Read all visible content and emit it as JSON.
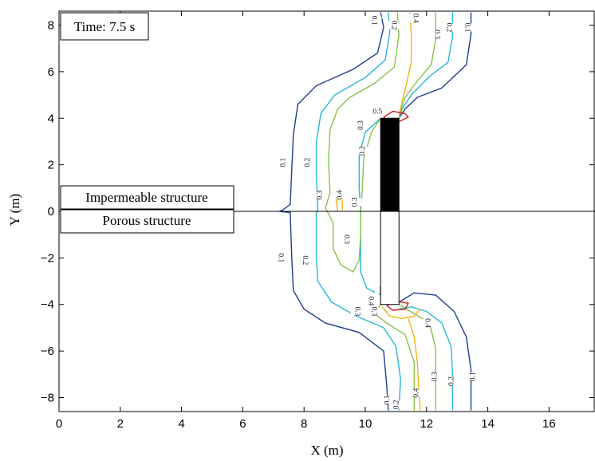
{
  "chart_data": {
    "type": "contour",
    "xlabel": "X (m)",
    "ylabel": "Y (m)",
    "xlim": [
      0,
      17.5
    ],
    "ylim": [
      -8.6,
      8.6
    ],
    "xticks": [
      0,
      2,
      4,
      6,
      8,
      10,
      12,
      14,
      16
    ],
    "yticks": [
      -8,
      -6,
      -4,
      -2,
      0,
      2,
      4,
      6,
      8
    ],
    "annotations": {
      "time": "Time: 7.5 s",
      "upper_structure": "Impermeable structure",
      "lower_structure": "Porous structure"
    },
    "structure": {
      "x": [
        10.5,
        11.1
      ],
      "y_upper": [
        0,
        4
      ],
      "y_lower": [
        -4,
        0
      ]
    },
    "levels": [
      {
        "level": 0.1,
        "label": "0.1",
        "color": "#1f3d8f"
      },
      {
        "level": 0.2,
        "label": "0.2",
        "color": "#29b6d9"
      },
      {
        "level": 0.3,
        "label": "0.3",
        "color": "#8cc04a"
      },
      {
        "level": 0.4,
        "label": "0.4",
        "color": "#f2b316"
      },
      {
        "level": 0.5,
        "label": "0.5",
        "color": "#cc1f1a"
      }
    ],
    "contours": [
      {
        "level": 0.1,
        "points": [
          [
            10.5,
            8.55
          ],
          [
            10.6,
            7.9
          ],
          [
            10.4,
            6.8
          ],
          [
            9.6,
            6.1
          ],
          [
            8.4,
            5.4
          ],
          [
            7.8,
            4.6
          ],
          [
            7.65,
            3.3
          ],
          [
            7.6,
            1.8
          ],
          [
            7.55,
            0.3
          ],
          [
            7.3,
            0.05
          ],
          [
            7.2,
            0
          ],
          [
            7.55,
            -0.05
          ],
          [
            7.6,
            -2
          ],
          [
            7.65,
            -3.4
          ],
          [
            8.0,
            -4.2
          ],
          [
            8.7,
            -4.8
          ],
          [
            9.8,
            -5.2
          ],
          [
            10.6,
            -6.0
          ],
          [
            10.7,
            -7.5
          ],
          [
            10.75,
            -8.55
          ]
        ]
      },
      {
        "level": 0.1,
        "points": [
          [
            13.45,
            8.55
          ],
          [
            13.45,
            7.6
          ],
          [
            13.3,
            6.3
          ],
          [
            12.5,
            5.3
          ],
          [
            11.7,
            4.9
          ],
          [
            11.3,
            4.4
          ],
          [
            11.1,
            4.0
          ]
        ]
      },
      {
        "level": 0.1,
        "points": [
          [
            11.1,
            -3.9
          ],
          [
            11.6,
            -3.5
          ],
          [
            12.3,
            -3.6
          ],
          [
            12.9,
            -4.3
          ],
          [
            13.3,
            -5.4
          ],
          [
            13.45,
            -6.8
          ],
          [
            13.45,
            -8.55
          ]
        ]
      },
      {
        "level": 0.2,
        "points": [
          [
            10.75,
            8.55
          ],
          [
            10.8,
            7.7
          ],
          [
            10.65,
            6.5
          ],
          [
            10.0,
            5.75
          ],
          [
            9.0,
            5.0
          ],
          [
            8.55,
            4.2
          ],
          [
            8.4,
            3.0
          ],
          [
            8.4,
            1.5
          ],
          [
            8.45,
            0.1
          ],
          [
            8.4,
            -0.05
          ],
          [
            8.4,
            -2.0
          ],
          [
            8.45,
            -3.0
          ],
          [
            8.9,
            -3.9
          ],
          [
            9.7,
            -4.5
          ],
          [
            10.6,
            -5.0
          ],
          [
            11.0,
            -5.8
          ],
          [
            11.15,
            -7.2
          ],
          [
            11.1,
            -8.55
          ]
        ]
      },
      {
        "level": 0.2,
        "points": [
          [
            12.85,
            8.55
          ],
          [
            12.85,
            7.5
          ],
          [
            12.7,
            6.4
          ],
          [
            12.1,
            5.8
          ],
          [
            11.5,
            5.0
          ],
          [
            11.2,
            4.4
          ],
          [
            11.1,
            4.0
          ]
        ]
      },
      {
        "level": 0.2,
        "points": [
          [
            11.1,
            -4.2
          ],
          [
            11.5,
            -4.1
          ],
          [
            12.0,
            -4.3
          ],
          [
            12.5,
            -4.8
          ],
          [
            12.8,
            -5.8
          ],
          [
            12.85,
            -7.0
          ],
          [
            12.85,
            -8.55
          ]
        ]
      },
      {
        "level": 0.2,
        "points": [
          [
            10.5,
            4.0
          ],
          [
            10.0,
            3.4
          ],
          [
            9.8,
            2.4
          ],
          [
            9.8,
            1.0
          ],
          [
            9.85,
            0.05
          ],
          [
            9.85,
            -1.5
          ],
          [
            9.85,
            -2.6
          ],
          [
            10.05,
            -3.3
          ],
          [
            10.5,
            -3.6
          ]
        ]
      },
      {
        "level": 0.3,
        "points": [
          [
            11.05,
            8.55
          ],
          [
            11.1,
            7.6
          ],
          [
            10.95,
            6.2
          ],
          [
            10.3,
            5.5
          ],
          [
            9.5,
            4.9
          ],
          [
            9.1,
            4.4
          ],
          [
            8.85,
            3.5
          ],
          [
            8.8,
            2.2
          ],
          [
            8.85,
            0.8
          ],
          [
            8.7,
            0.15
          ],
          [
            8.95,
            -0.5
          ],
          [
            8.95,
            -1.6
          ],
          [
            9.2,
            -2.3
          ],
          [
            9.6,
            -2.6
          ],
          [
            9.8,
            -2.1
          ],
          [
            9.85,
            -1.0
          ],
          [
            9.85,
            0.05
          ],
          [
            9.9,
            0.9
          ],
          [
            9.95,
            2.3
          ],
          [
            10.2,
            3.4
          ],
          [
            10.5,
            4.0
          ]
        ]
      },
      {
        "level": 0.3,
        "points": [
          [
            12.3,
            8.55
          ],
          [
            12.3,
            7.4
          ],
          [
            12.15,
            6.3
          ],
          [
            11.7,
            5.6
          ],
          [
            11.3,
            4.9
          ],
          [
            11.15,
            4.3
          ],
          [
            11.1,
            4.0
          ]
        ]
      },
      {
        "level": 0.3,
        "points": [
          [
            10.5,
            -4.0
          ],
          [
            10.3,
            -4.4
          ],
          [
            10.7,
            -4.8
          ],
          [
            11.3,
            -5.3
          ],
          [
            11.6,
            -6.5
          ],
          [
            11.6,
            -8.55
          ]
        ]
      },
      {
        "level": 0.3,
        "points": [
          [
            11.1,
            -4.0
          ],
          [
            11.6,
            -4.4
          ],
          [
            12.1,
            -4.8
          ],
          [
            12.3,
            -5.9
          ],
          [
            12.3,
            -7.2
          ],
          [
            12.3,
            -8.55
          ]
        ]
      },
      {
        "level": 0.4,
        "points": [
          [
            11.45,
            8.55
          ],
          [
            11.5,
            7.7
          ],
          [
            11.5,
            6.4
          ],
          [
            11.35,
            5.5
          ],
          [
            11.2,
            4.7
          ],
          [
            11.1,
            4.1
          ]
        ]
      },
      {
        "level": 0.4,
        "points": [
          [
            9.1,
            0.0
          ],
          [
            9.05,
            0.5
          ],
          [
            9.15,
            0.9
          ],
          [
            9.25,
            0.6
          ],
          [
            9.25,
            0.05
          ]
        ]
      },
      {
        "level": 0.4,
        "points": [
          [
            10.55,
            -4.1
          ],
          [
            10.8,
            -4.5
          ],
          [
            11.2,
            -4.6
          ],
          [
            11.6,
            -4.5
          ],
          [
            11.8,
            -4.2
          ]
        ]
      },
      {
        "level": 0.4,
        "points": [
          [
            11.4,
            -4.6
          ],
          [
            11.6,
            -5.4
          ],
          [
            11.7,
            -6.5
          ],
          [
            11.75,
            -7.8
          ],
          [
            11.8,
            -8.55
          ]
        ]
      },
      {
        "level": 0.5,
        "points": [
          [
            10.6,
            4.05
          ],
          [
            10.9,
            4.3
          ],
          [
            11.3,
            4.2
          ],
          [
            11.4,
            4.05
          ],
          [
            11.1,
            3.85
          ],
          [
            10.75,
            3.9
          ],
          [
            10.6,
            4.05
          ]
        ]
      },
      {
        "level": 0.5,
        "points": [
          [
            10.7,
            -4.05
          ],
          [
            11.0,
            -3.85
          ],
          [
            11.4,
            -3.95
          ],
          [
            11.3,
            -4.2
          ],
          [
            10.9,
            -4.25
          ],
          [
            10.7,
            -4.05
          ]
        ]
      }
    ],
    "contour_labels": [
      {
        "text": "0.1",
        "x": 7.3,
        "y": 2.1,
        "rot": -90,
        "level": 0.1
      },
      {
        "text": "0.2",
        "x": 8.1,
        "y": 2.1,
        "rot": -90,
        "level": 0.2
      },
      {
        "text": "0.3",
        "x": 8.5,
        "y": 0.7,
        "rot": -90,
        "level": 0.3
      },
      {
        "text": "0.4",
        "x": 9.15,
        "y": 0.7,
        "rot": -90,
        "level": 0.4
      },
      {
        "text": "0.3",
        "x": 9.65,
        "y": 0.4,
        "rot": -90,
        "level": 0.3
      },
      {
        "text": "0.2",
        "x": 9.9,
        "y": 2.6,
        "rot": -90,
        "level": 0.2
      },
      {
        "text": "0.3",
        "x": 9.85,
        "y": 3.7,
        "rot": -90,
        "level": 0.3
      },
      {
        "text": "0.5",
        "x": 10.4,
        "y": 4.3,
        "rot": 0,
        "level": 0.5
      },
      {
        "text": "0.1",
        "x": 10.3,
        "y": 8.2,
        "rot": 90,
        "level": 0.1
      },
      {
        "text": "0.2",
        "x": 10.95,
        "y": 8.0,
        "rot": 90,
        "level": 0.2
      },
      {
        "text": "0.4",
        "x": 11.65,
        "y": 8.3,
        "rot": 90,
        "level": 0.4
      },
      {
        "text": "0.3",
        "x": 12.35,
        "y": 7.6,
        "rot": 90,
        "level": 0.3
      },
      {
        "text": "0.2",
        "x": 12.75,
        "y": 7.9,
        "rot": 90,
        "level": 0.2
      },
      {
        "text": "0.1",
        "x": 13.35,
        "y": 7.9,
        "rot": 90,
        "level": 0.1
      },
      {
        "text": "0.3",
        "x": 9.4,
        "y": -1.2,
        "rot": 90,
        "level": 0.3
      },
      {
        "text": "0.1",
        "x": 7.25,
        "y": -2.0,
        "rot": 90,
        "level": 0.1
      },
      {
        "text": "0.2",
        "x": 8.05,
        "y": -2.1,
        "rot": 90,
        "level": 0.2
      },
      {
        "text": "0.1",
        "x": 10.55,
        "y": -3.4,
        "rot": 90,
        "level": 0.1
      },
      {
        "text": "0.4",
        "x": 10.2,
        "y": -3.85,
        "rot": 90,
        "level": 0.4
      },
      {
        "text": "0.3",
        "x": 10.3,
        "y": -4.3,
        "rot": 90,
        "level": 0.3
      },
      {
        "text": "0.3",
        "x": 9.75,
        "y": -4.3,
        "rot": 90,
        "level": 0.3
      },
      {
        "text": "0.4",
        "x": 12.05,
        "y": -4.8,
        "rot": 90,
        "level": 0.4
      },
      {
        "text": "0.3",
        "x": 12.25,
        "y": -7.1,
        "rot": -90,
        "level": 0.3
      },
      {
        "text": "0.2",
        "x": 12.8,
        "y": -7.3,
        "rot": -90,
        "level": 0.2
      },
      {
        "text": "0.1",
        "x": 13.5,
        "y": -7.1,
        "rot": -90,
        "level": 0.1
      },
      {
        "text": "0.4",
        "x": 11.65,
        "y": -7.8,
        "rot": -90,
        "level": 0.4
      },
      {
        "text": "0.1",
        "x": 10.7,
        "y": -8.1,
        "rot": -90,
        "level": 0.1
      },
      {
        "text": "0.2",
        "x": 11.0,
        "y": -8.3,
        "rot": -90,
        "level": 0.2
      }
    ]
  }
}
